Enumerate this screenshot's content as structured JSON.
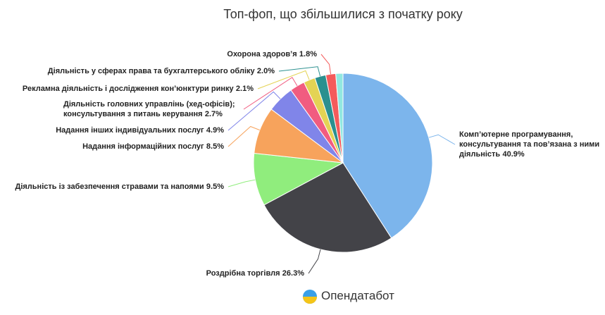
{
  "chart_data": {
    "type": "pie",
    "title": "Топ-фоп, що збільшилися з початку року",
    "categories": [
      "Комп’ютерне програмування, консультування та пов’язана з ними діяльність",
      "Роздрібна торгівля",
      "Діяльність із забезпечення стравами та напоями",
      "Надання інформаційних послуг",
      "Надання інших індивідуальних послуг",
      "Діяльність головних управлінь (хед-офісів); консультування з питань керування",
      "Рекламна діяльність і дослідження кон’юнктури ринку",
      "Діяльність у сферах права та бухгалтерського обліку",
      "Охорона здоров’я",
      null
    ],
    "values": [
      40.9,
      26.3,
      9.5,
      8.5,
      4.9,
      2.7,
      2.1,
      2.0,
      1.8,
      1.3
    ],
    "value_labels": [
      "40.9%",
      "26.3%",
      "9.5%",
      "8.5%",
      "4.9%",
      "2.7%",
      "2.1%",
      "2.0%",
      "1.8%",
      null
    ],
    "colors": [
      "#7cb5ec",
      "#434348",
      "#90ed7d",
      "#f7a35c",
      "#8085e9",
      "#f15c80",
      "#e4d354",
      "#2b908f",
      "#f45b5b",
      "#91e8e1"
    ],
    "credit": "Опендатабот"
  }
}
